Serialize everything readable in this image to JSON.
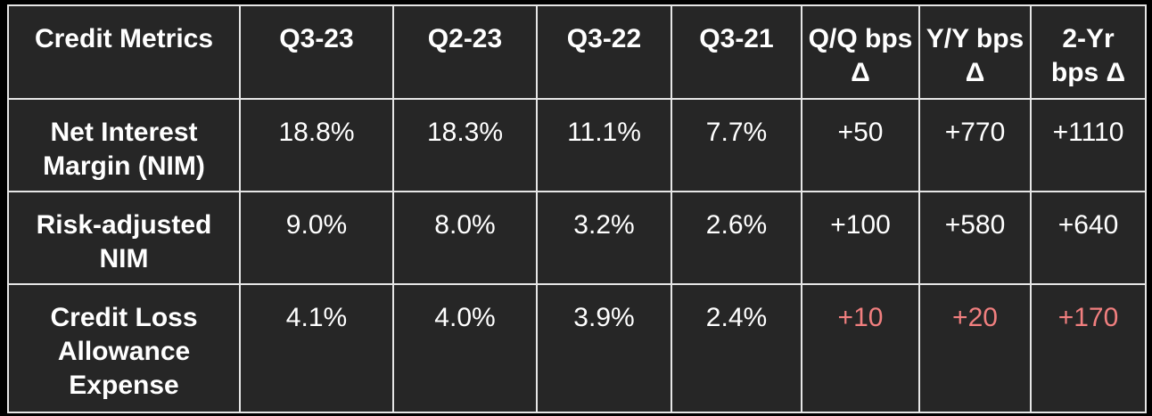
{
  "table": {
    "header": [
      "Credit Metrics",
      "Q3-23",
      "Q2-23",
      "Q3-22",
      "Q3-21",
      "Q/Q bps Δ",
      "Y/Y bps Δ",
      "2-Yr bps Δ"
    ],
    "rows": [
      [
        "Net Interest Margin (NIM)",
        "18.8%",
        "18.3%",
        "11.1%",
        "7.7%",
        "+50",
        "+770",
        "+1110"
      ],
      [
        "Risk-adjusted NIM",
        "9.0%",
        "8.0%",
        "3.2%",
        "2.6%",
        "+100",
        "+580",
        "+640"
      ],
      [
        "Credit Loss Allowance Expense",
        "4.1%",
        "4.0%",
        "3.9%",
        "2.4%",
        "+10",
        "+20",
        "+170"
      ]
    ]
  }
}
